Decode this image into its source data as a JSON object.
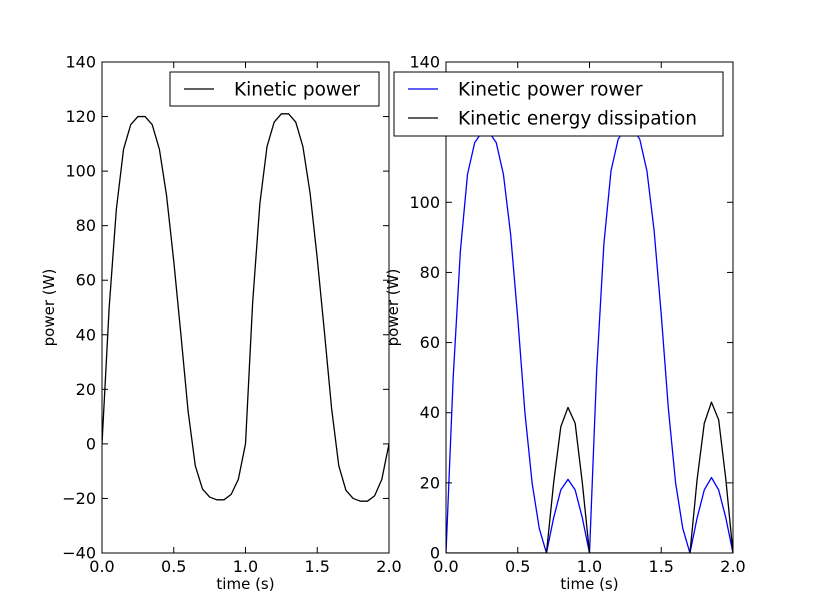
{
  "chart_data": [
    {
      "type": "line",
      "xlabel": "time (s)",
      "ylabel": "power (W)",
      "xlim": [
        0.0,
        2.0
      ],
      "ylim": [
        -40,
        140
      ],
      "xticks": [
        "0.0",
        "0.5",
        "1.0",
        "1.5",
        "2.0"
      ],
      "yticks": [
        "−40",
        "−20",
        "0",
        "20",
        "40",
        "60",
        "80",
        "100",
        "120",
        "140"
      ],
      "legend_location": "top-right",
      "series": [
        {
          "name": "Kinetic power",
          "color": "#000000",
          "points": [
            [
              0.0,
              0
            ],
            [
              0.05,
              50
            ],
            [
              0.1,
              86
            ],
            [
              0.15,
              108
            ],
            [
              0.2,
              117
            ],
            [
              0.25,
              120
            ],
            [
              0.3,
              120
            ],
            [
              0.35,
              117
            ],
            [
              0.4,
              108
            ],
            [
              0.45,
              91
            ],
            [
              0.5,
              67
            ],
            [
              0.55,
              40
            ],
            [
              0.6,
              12
            ],
            [
              0.65,
              -8
            ],
            [
              0.7,
              -16.5
            ],
            [
              0.75,
              -19.5
            ],
            [
              0.8,
              -20.5
            ],
            [
              0.85,
              -20.5
            ],
            [
              0.9,
              -18.5
            ],
            [
              0.95,
              -13
            ],
            [
              1.0,
              0
            ],
            [
              1.05,
              52
            ],
            [
              1.1,
              88
            ],
            [
              1.15,
              109
            ],
            [
              1.2,
              118
            ],
            [
              1.25,
              121
            ],
            [
              1.3,
              121
            ],
            [
              1.35,
              118
            ],
            [
              1.4,
              109
            ],
            [
              1.45,
              92
            ],
            [
              1.5,
              68
            ],
            [
              1.55,
              41
            ],
            [
              1.6,
              13
            ],
            [
              1.65,
              -8
            ],
            [
              1.7,
              -17
            ],
            [
              1.75,
              -20
            ],
            [
              1.8,
              -21
            ],
            [
              1.85,
              -21
            ],
            [
              1.9,
              -19
            ],
            [
              1.95,
              -13
            ],
            [
              2.0,
              0
            ]
          ]
        }
      ]
    },
    {
      "type": "line",
      "xlabel": "time (s)",
      "ylabel": "power (W)",
      "xlim": [
        0.0,
        2.0
      ],
      "ylim": [
        0,
        140
      ],
      "xticks": [
        "0.0",
        "0.5",
        "1.0",
        "1.5",
        "2.0"
      ],
      "yticks": [
        "0",
        "20",
        "40",
        "60",
        "80",
        "100",
        "140"
      ],
      "legend_location": "top-right",
      "series": [
        {
          "name": "Kinetic power rower",
          "color": "#0000ff",
          "points": [
            [
              0.0,
              0
            ],
            [
              0.05,
              50
            ],
            [
              0.1,
              86
            ],
            [
              0.15,
              108
            ],
            [
              0.2,
              117
            ],
            [
              0.25,
              120
            ],
            [
              0.3,
              120
            ],
            [
              0.35,
              117
            ],
            [
              0.4,
              108
            ],
            [
              0.45,
              91
            ],
            [
              0.5,
              67
            ],
            [
              0.55,
              40
            ],
            [
              0.6,
              20
            ],
            [
              0.65,
              7
            ],
            [
              0.7,
              0
            ],
            [
              0.75,
              10
            ],
            [
              0.8,
              18
            ],
            [
              0.85,
              21
            ],
            [
              0.9,
              18
            ],
            [
              0.95,
              10
            ],
            [
              1.0,
              0
            ],
            [
              1.05,
              52
            ],
            [
              1.1,
              88
            ],
            [
              1.15,
              109
            ],
            [
              1.2,
              118
            ],
            [
              1.25,
              121
            ],
            [
              1.3,
              121
            ],
            [
              1.35,
              118
            ],
            [
              1.4,
              109
            ],
            [
              1.45,
              92
            ],
            [
              1.5,
              68
            ],
            [
              1.55,
              41
            ],
            [
              1.6,
              20
            ],
            [
              1.65,
              7
            ],
            [
              1.7,
              0
            ],
            [
              1.75,
              10
            ],
            [
              1.8,
              18
            ],
            [
              1.85,
              21.5
            ],
            [
              1.9,
              18
            ],
            [
              1.95,
              10
            ],
            [
              2.0,
              0
            ]
          ]
        },
        {
          "name": "Kinetic energy dissipation",
          "color": "#000000",
          "points": [
            [
              0.0,
              0
            ],
            [
              0.7,
              0
            ],
            [
              0.75,
              20
            ],
            [
              0.8,
              36
            ],
            [
              0.85,
              41.5
            ],
            [
              0.9,
              37
            ],
            [
              0.95,
              20
            ],
            [
              1.0,
              0
            ],
            [
              1.7,
              0
            ],
            [
              1.75,
              21
            ],
            [
              1.8,
              37
            ],
            [
              1.85,
              43
            ],
            [
              1.9,
              38
            ],
            [
              1.95,
              21
            ],
            [
              2.0,
              0
            ]
          ]
        }
      ]
    }
  ]
}
